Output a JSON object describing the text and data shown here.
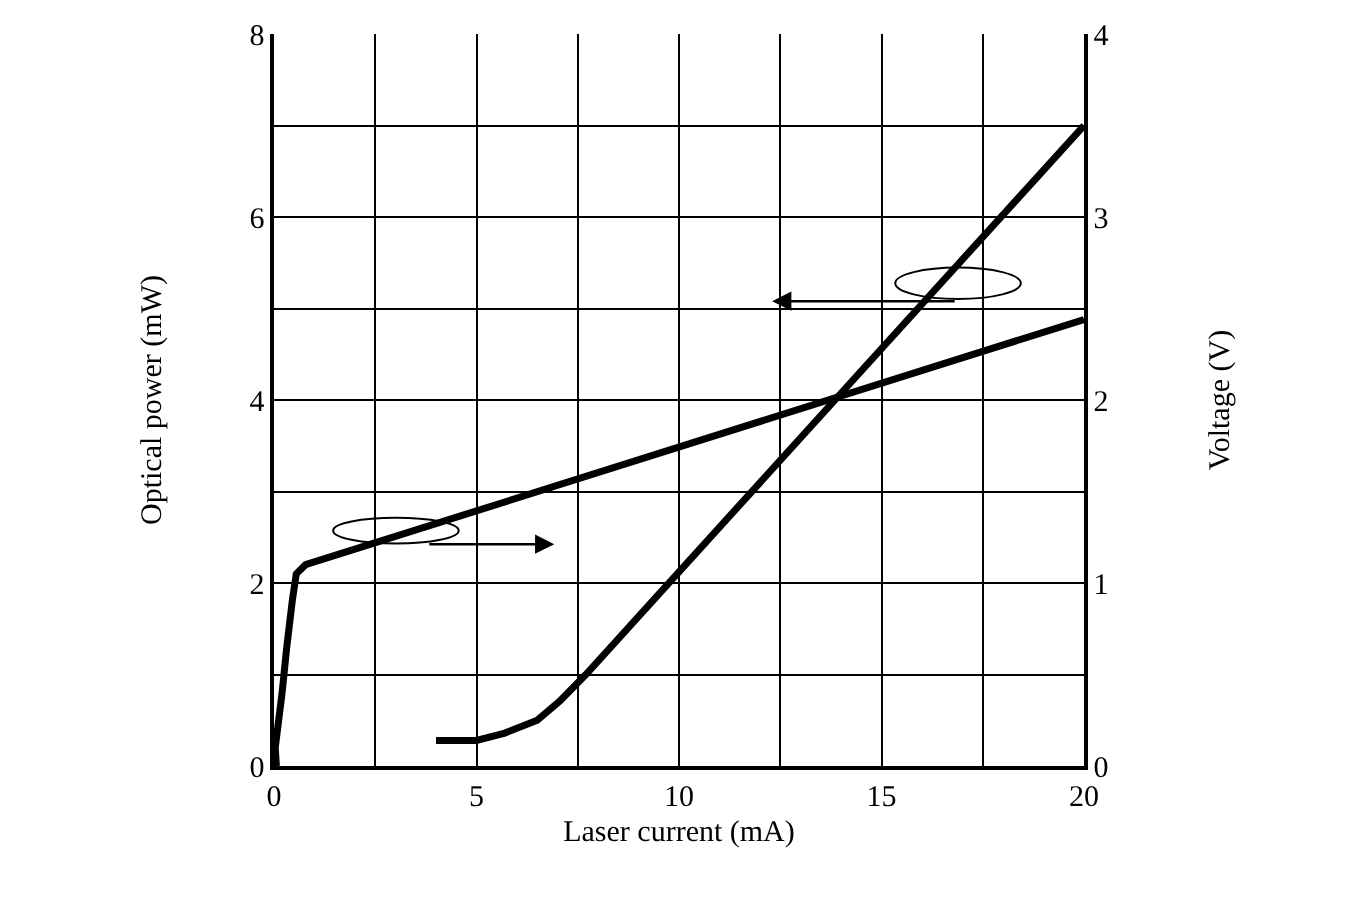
{
  "chart_data": {
    "type": "line",
    "xlabel": "Laser current (mA)",
    "ylabel": "Optical power (mW)",
    "y2label": "Voltage (V)",
    "xlim": [
      0,
      20
    ],
    "xticks": [
      0,
      {
        "value": 2.5,
        "label": null
      },
      5,
      {
        "value": 7.5,
        "label": null
      },
      10,
      {
        "value": 12.5,
        "label": null
      },
      15,
      {
        "value": 17.5,
        "label": null
      },
      20
    ],
    "ylim": [
      0,
      8
    ],
    "yticks": [
      0,
      {
        "value": 1,
        "label": null
      },
      2,
      {
        "value": 3,
        "label": null
      },
      4,
      {
        "value": 5,
        "label": null
      },
      6,
      {
        "value": 7,
        "label": null
      },
      8
    ],
    "y2lim": [
      0,
      4
    ],
    "y2ticks": [
      0,
      1,
      2,
      3,
      4
    ],
    "grid": true,
    "marker": "none",
    "line_style": "solid",
    "series": [
      {
        "color": "#000000",
        "x": [
          4,
          5,
          5.7,
          6.5,
          7.06,
          7.7,
          20
        ],
        "values": [
          0.28,
          0.28,
          0.36,
          0.5,
          0.71,
          1.0,
          7.0
        ]
      },
      {
        "color": "#000000",
        "axis": "y2",
        "x": [
          0.06,
          0.03,
          0.2,
          0.31,
          0.45,
          0.55,
          0.78,
          20
        ],
        "values": [
          0,
          0.1,
          0.4,
          0.64,
          0.9,
          1.05,
          1.1,
          2.44
        ]
      }
    ]
  }
}
